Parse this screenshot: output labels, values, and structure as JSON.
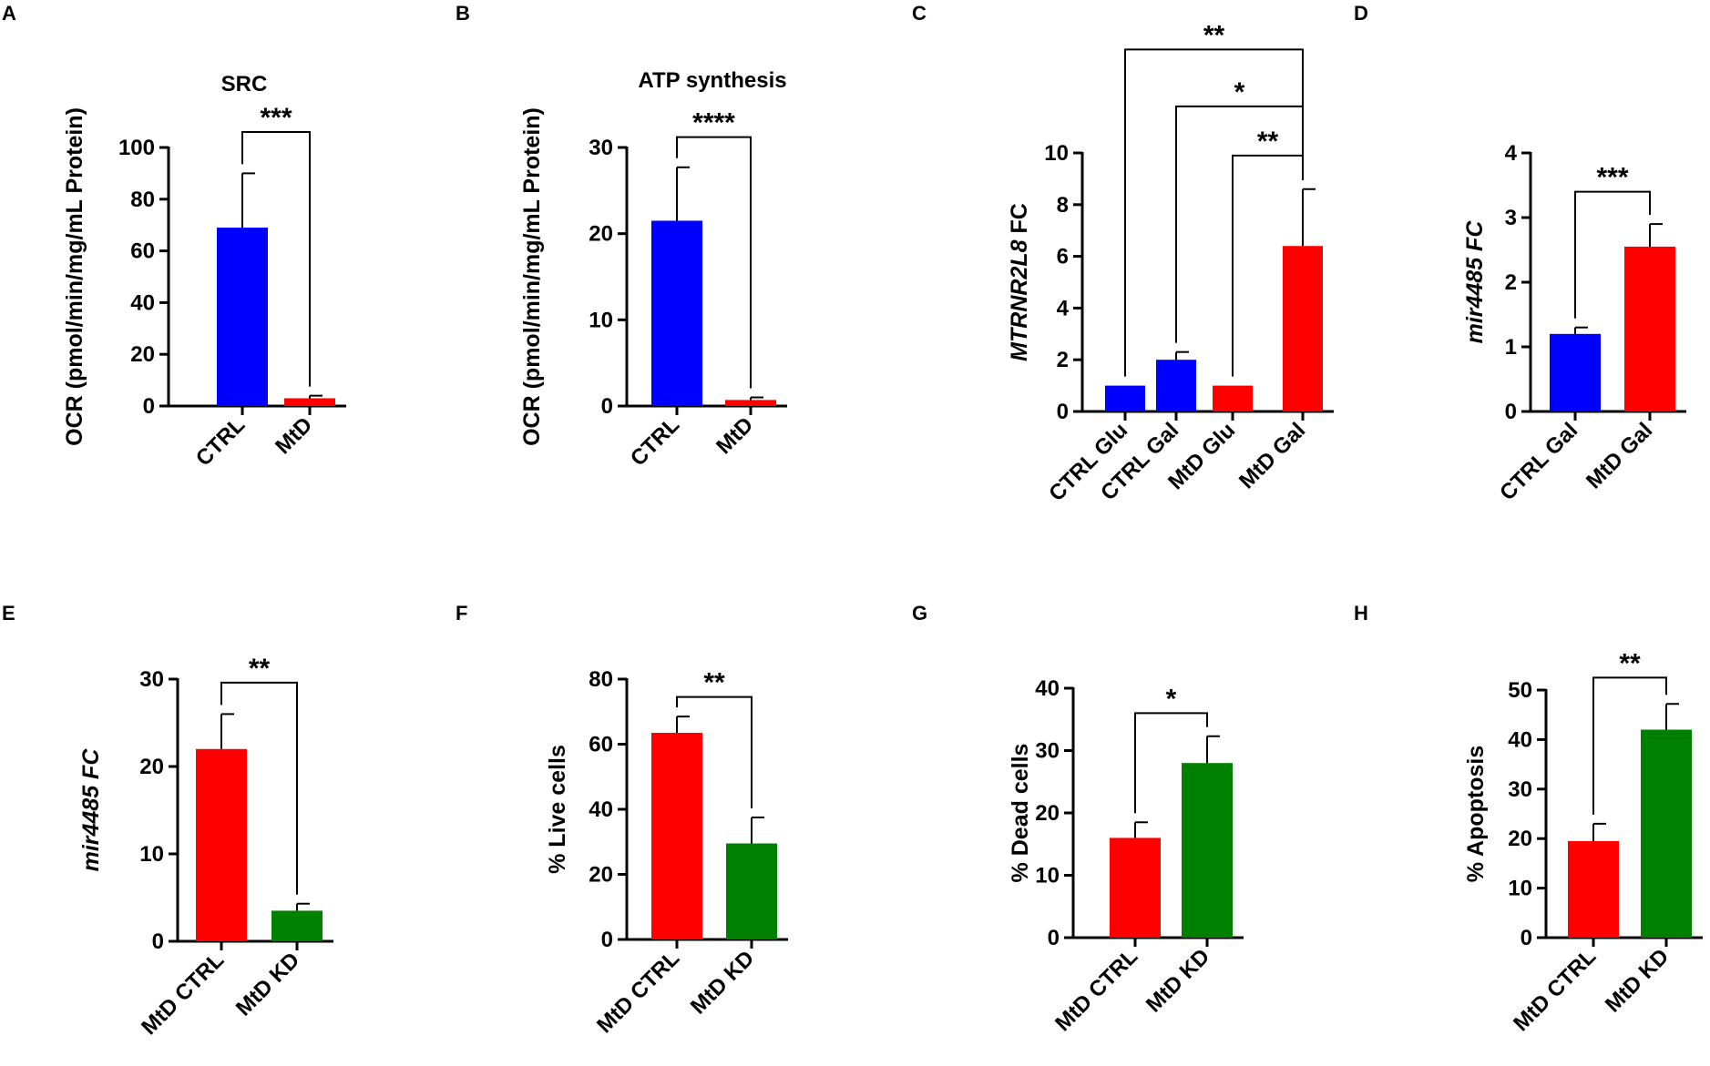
{
  "chart_data": [
    {
      "panel": "A",
      "type": "bar",
      "title": "SRC",
      "ylabel": "OCR (pmol/min/mg/mL Protein)",
      "ylabel_italic": false,
      "categories": [
        "CTRL",
        "MtD"
      ],
      "values": [
        69,
        3
      ],
      "errors": [
        21,
        1
      ],
      "colors": [
        "#0000ff",
        "#ff0000"
      ],
      "ylim": [
        0,
        100
      ],
      "ticks": [
        {
          "v": 0,
          "label": "0"
        },
        {
          "v": 20,
          "label": "20"
        },
        {
          "v": 40,
          "label": "40"
        },
        {
          "v": 60,
          "label": "60"
        },
        {
          "v": 80,
          "label": "80"
        },
        {
          "v": 100,
          "label": "100"
        }
      ],
      "comparisons": [
        {
          "from": 0,
          "to": 1,
          "level": 106,
          "label": "***"
        }
      ]
    },
    {
      "panel": "B",
      "type": "bar",
      "title": "ATP synthesis",
      "ylabel": "OCR (pmol/min/mg/mL Protein)",
      "ylabel_italic": false,
      "categories": [
        "CTRL",
        "MtD"
      ],
      "values": [
        21.5,
        0.7
      ],
      "errors": [
        6.2,
        0.3
      ],
      "colors": [
        "#0000ff",
        "#ff0000"
      ],
      "ylim": [
        0,
        30
      ],
      "ticks": [
        {
          "v": 0,
          "label": "0"
        },
        {
          "v": 10,
          "label": "10"
        },
        {
          "v": 20,
          "label": "20"
        },
        {
          "v": 30,
          "label": "30"
        }
      ],
      "comparisons": [
        {
          "from": 0,
          "to": 1,
          "level": 31.2,
          "label": "****"
        }
      ]
    },
    {
      "panel": "C",
      "type": "bar",
      "title": "",
      "ylabel": "MTRNR2L8 FC",
      "ylabel_italic": true,
      "ylabel_italic_part": "MTRNR2L8",
      "ylabel_normal_part": " FC",
      "categories": [
        "CTRL Glu",
        "CTRL Gal",
        "MtD Glu",
        "MtD Gal"
      ],
      "values": [
        1,
        2,
        1,
        6.4
      ],
      "errors": [
        0,
        0.3,
        0,
        2.2
      ],
      "colors": [
        "#0000ff",
        "#0000ff",
        "#ff0000",
        "#ff0000"
      ],
      "ylim": [
        0,
        10
      ],
      "ticks": [
        {
          "v": 0,
          "label": "0"
        },
        {
          "v": 2,
          "label": "2"
        },
        {
          "v": 4,
          "label": "4"
        },
        {
          "v": 6,
          "label": "6"
        },
        {
          "v": 8,
          "label": "8"
        },
        {
          "v": 10,
          "label": "10"
        }
      ],
      "comparisons": [
        {
          "from": 0,
          "to": 3,
          "level": 14,
          "label": "**"
        },
        {
          "from": 1,
          "to": 3,
          "level": 11.8,
          "label": "*"
        },
        {
          "from": 2,
          "to": 3,
          "level": 9.9,
          "label": "**"
        }
      ]
    },
    {
      "panel": "D",
      "type": "bar",
      "title": "",
      "ylabel": "mir4485 FC",
      "ylabel_italic": true,
      "categories": [
        "CTRL Gal",
        "MtD Gal"
      ],
      "values": [
        1.2,
        2.55
      ],
      "errors": [
        0.1,
        0.35
      ],
      "colors": [
        "#0000ff",
        "#ff0000"
      ],
      "ylim": [
        0,
        4
      ],
      "ticks": [
        {
          "v": 0,
          "label": "0"
        },
        {
          "v": 1,
          "label": "1"
        },
        {
          "v": 2,
          "label": "2"
        },
        {
          "v": 3,
          "label": "3"
        },
        {
          "v": 4,
          "label": "4"
        }
      ],
      "comparisons": [
        {
          "from": 0,
          "to": 1,
          "level": 3.4,
          "label": "***"
        }
      ]
    },
    {
      "panel": "E",
      "type": "bar",
      "title": "",
      "ylabel": "mir4485 FC",
      "ylabel_italic": true,
      "categories": [
        "MtD CTRL",
        "MtD KD"
      ],
      "values": [
        22,
        3.5
      ],
      "errors": [
        4,
        0.8
      ],
      "colors": [
        "#ff0000",
        "#008000"
      ],
      "ylim": [
        0,
        30
      ],
      "ticks": [
        {
          "v": 0,
          "label": "0"
        },
        {
          "v": 10,
          "label": "10"
        },
        {
          "v": 20,
          "label": "20"
        },
        {
          "v": 30,
          "label": "30"
        }
      ],
      "comparisons": [
        {
          "from": 0,
          "to": 1,
          "level": 29.6,
          "label": "**"
        }
      ]
    },
    {
      "panel": "F",
      "type": "bar",
      "title": "",
      "ylabel": "% Live cells",
      "ylabel_italic": false,
      "categories": [
        "MtD CTRL",
        "MtD KD"
      ],
      "values": [
        63.5,
        29.5
      ],
      "errors": [
        5,
        8
      ],
      "colors": [
        "#ff0000",
        "#008000"
      ],
      "ylim": [
        0,
        80
      ],
      "ticks": [
        {
          "v": 0,
          "label": "0"
        },
        {
          "v": 20,
          "label": "20"
        },
        {
          "v": 40,
          "label": "40"
        },
        {
          "v": 60,
          "label": "60"
        },
        {
          "v": 80,
          "label": "80"
        }
      ],
      "comparisons": [
        {
          "from": 0,
          "to": 1,
          "level": 74.5,
          "label": "**"
        }
      ]
    },
    {
      "panel": "G",
      "type": "bar",
      "title": "",
      "ylabel": "% Dead cells",
      "ylabel_italic": false,
      "categories": [
        "MtD CTRL",
        "MtD KD"
      ],
      "values": [
        16,
        28
      ],
      "errors": [
        2.5,
        4.3
      ],
      "colors": [
        "#ff0000",
        "#008000"
      ],
      "ylim": [
        0,
        40
      ],
      "ticks": [
        {
          "v": 0,
          "label": "0"
        },
        {
          "v": 10,
          "label": "10"
        },
        {
          "v": 20,
          "label": "20"
        },
        {
          "v": 30,
          "label": "30"
        },
        {
          "v": 40,
          "label": "40"
        }
      ],
      "comparisons": [
        {
          "from": 0,
          "to": 1,
          "level": 36,
          "label": "*"
        }
      ]
    },
    {
      "panel": "H",
      "type": "bar",
      "title": "",
      "ylabel": "% Apoptosis",
      "ylabel_italic": false,
      "categories": [
        "MtD CTRL",
        "MtD KD"
      ],
      "values": [
        19.5,
        42
      ],
      "errors": [
        3.5,
        5.2
      ],
      "colors": [
        "#ff0000",
        "#008000"
      ],
      "ylim": [
        0,
        50
      ],
      "ticks": [
        {
          "v": 0,
          "label": "0"
        },
        {
          "v": 10,
          "label": "10"
        },
        {
          "v": 20,
          "label": "20"
        },
        {
          "v": 30,
          "label": "30"
        },
        {
          "v": 40,
          "label": "40"
        },
        {
          "v": 50,
          "label": "50"
        }
      ],
      "comparisons": [
        {
          "from": 0,
          "to": 1,
          "level": 52.5,
          "label": "**"
        }
      ]
    }
  ]
}
